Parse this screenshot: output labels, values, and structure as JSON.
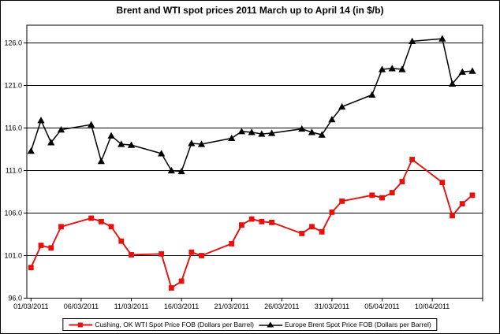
{
  "chart_data": {
    "type": "line",
    "title": "Brent and WTI spot prices 2011 March up to April 14 (in $/b)",
    "xlabel": "",
    "ylabel": "",
    "ylim": [
      96,
      128.1
    ],
    "grid": "horizontal",
    "legend_position": "bottom-center",
    "background": "#ffffff",
    "axis_color": "#000000",
    "y_ticks": {
      "values": [
        96,
        101,
        106,
        111,
        116,
        121,
        126
      ],
      "labels": [
        "96.0",
        "101.0",
        "106.0",
        "111.0",
        "116.0",
        "121.0",
        "126.0"
      ]
    },
    "x_ticks": {
      "labels": [
        "01/03/2011",
        "06/03/2011",
        "11/03/2011",
        "16/03/2011",
        "21/03/2011",
        "26/03/2011",
        "31/03/2011",
        "05/04/2011",
        "10/04/2011"
      ],
      "day_offsets": [
        0,
        5,
        10,
        15,
        20,
        25,
        30,
        35,
        40
      ]
    },
    "dates": [
      "01/03/2011",
      "02/03/2011",
      "03/03/2011",
      "04/03/2011",
      "07/03/2011",
      "08/03/2011",
      "09/03/2011",
      "10/03/2011",
      "11/03/2011",
      "14/03/2011",
      "15/03/2011",
      "16/03/2011",
      "17/03/2011",
      "18/03/2011",
      "21/03/2011",
      "22/03/2011",
      "23/03/2011",
      "24/03/2011",
      "25/03/2011",
      "28/03/2011",
      "29/03/2011",
      "30/03/2011",
      "31/03/2011",
      "01/04/2011",
      "04/04/2011",
      "05/04/2011",
      "06/04/2011",
      "07/04/2011",
      "08/04/2011",
      "11/04/2011",
      "12/04/2011",
      "13/04/2011",
      "14/04/2011"
    ],
    "day_offsets": [
      0,
      1,
      2,
      3,
      6,
      7,
      8,
      9,
      10,
      13,
      14,
      15,
      16,
      17,
      20,
      21,
      22,
      23,
      24,
      27,
      28,
      29,
      30,
      31,
      34,
      35,
      36,
      37,
      38,
      41,
      42,
      43,
      44
    ],
    "series": [
      {
        "name": "Cushing, OK WTI Spot Price FOB (Dollars per Barrel)",
        "color": "#e8100c",
        "marker": "square",
        "values": [
          99.6,
          102.2,
          101.9,
          104.4,
          105.4,
          105.0,
          104.4,
          102.7,
          101.1,
          101.2,
          97.2,
          98.0,
          101.4,
          101.0,
          102.4,
          104.6,
          105.3,
          105.0,
          104.9,
          103.6,
          104.4,
          103.8,
          106.1,
          107.4,
          108.1,
          107.8,
          108.4,
          109.7,
          112.3,
          109.6,
          105.7,
          107.1,
          108.1
        ]
      },
      {
        "name": "Europe Brent Spot Price FOB (Dollars per Barrel)",
        "color": "#000000",
        "marker": "triangle",
        "values": [
          113.3,
          116.9,
          114.3,
          115.8,
          116.4,
          112.1,
          115.1,
          114.1,
          114.0,
          113.0,
          111.0,
          110.9,
          114.2,
          114.1,
          114.8,
          115.6,
          115.5,
          115.3,
          115.4,
          115.9,
          115.5,
          115.2,
          117.0,
          118.5,
          119.9,
          122.9,
          123.0,
          122.9,
          126.2,
          126.5,
          121.2,
          122.6,
          122.7
        ]
      }
    ]
  }
}
